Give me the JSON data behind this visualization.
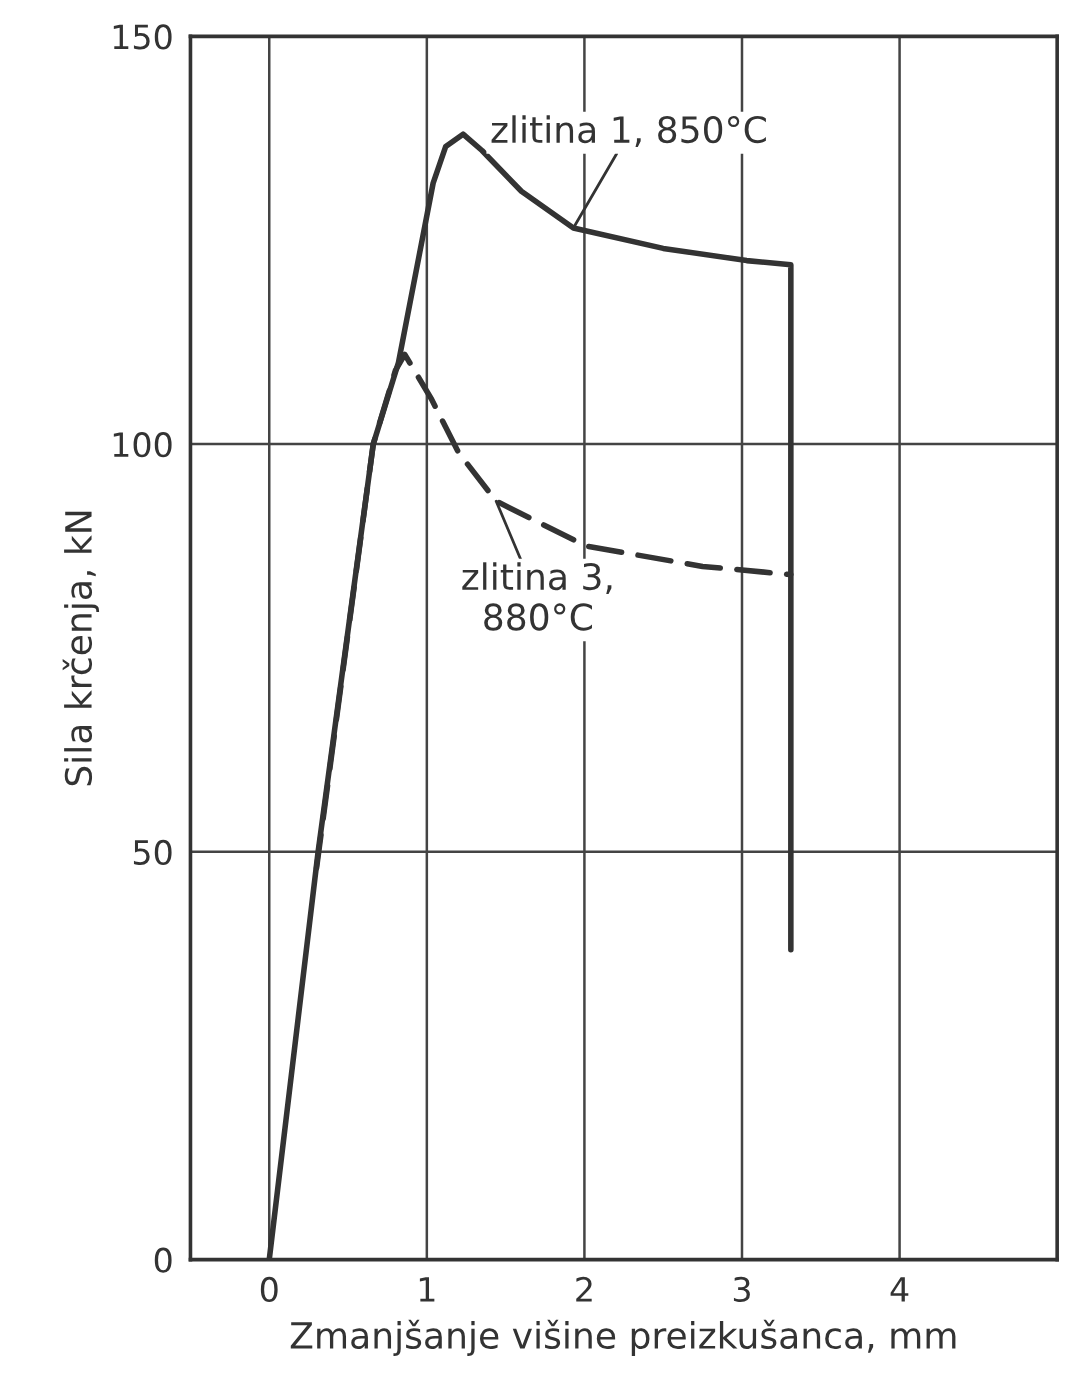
{
  "chart_data": {
    "type": "line",
    "xlabel": "Zmanjšanje višine preizkušanca, mm",
    "ylabel": "Sila krčenja, kN",
    "xlim": [
      -0.5,
      5
    ],
    "ylim": [
      0,
      150
    ],
    "xticks": [
      0,
      1,
      2,
      3,
      4
    ],
    "yticks": [
      0,
      50,
      100,
      150
    ],
    "grid": true,
    "marker": "none",
    "series": [
      {
        "color": "#333333",
        "line_style": "solid",
        "x": [
          0,
          0.31,
          0.66,
          0.82,
          1.04,
          1.12,
          1.23,
          1.35,
          1.6,
          1.93,
          2.5,
          3.03,
          3.31,
          3.31
        ],
        "values": [
          0,
          50,
          100,
          110,
          132,
          136.5,
          138,
          136,
          131,
          126.5,
          124,
          122.5,
          122,
          38
        ]
      },
      {
        "color": "#333333",
        "line_style": "dashed",
        "x": [
          0.3,
          0.66,
          0.8,
          0.86,
          1.03,
          1.2,
          1.44,
          2.01,
          2.75,
          3.31
        ],
        "values": [
          48,
          100,
          109,
          111,
          105.5,
          99,
          93,
          87.5,
          85,
          84
        ]
      }
    ],
    "annotations": [
      {
        "text": "zlitina 1, 850°C",
        "x": 1.93,
        "y": 126.5
      },
      {
        "text": "zlitina 3,\n880°C",
        "x": 1.44,
        "y": 93
      }
    ]
  }
}
